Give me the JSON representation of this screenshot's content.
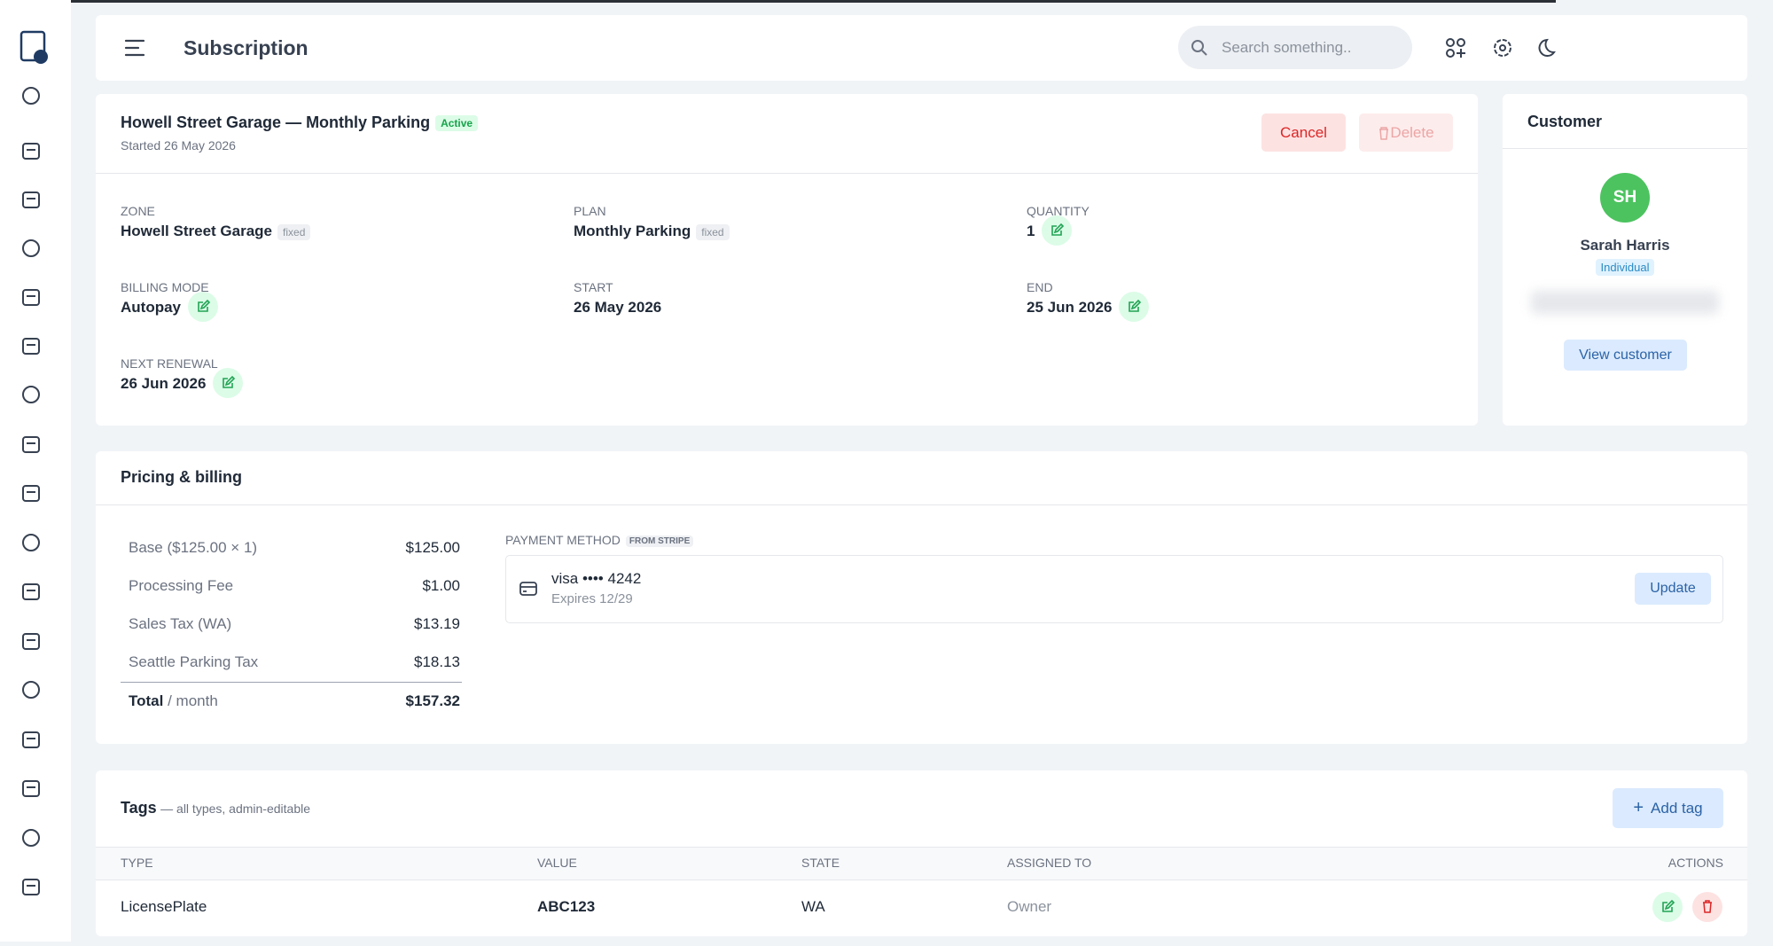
{
  "header": {
    "title": "Subscription",
    "search_placeholder": "Search something.."
  },
  "subscription": {
    "title": "Howell Street Garage — Monthly Parking",
    "status": "Active",
    "started": "Started 26 May 2026",
    "cancel_button": "Cancel",
    "delete_button": "Delete",
    "fields": [
      {
        "label": "ZONE",
        "value": "Howell Street Garage",
        "badge": "fixed"
      },
      {
        "label": "PLAN",
        "value": "Monthly Parking",
        "badge": "fixed"
      },
      {
        "label": "QUANTITY",
        "value": "1",
        "editable": true
      },
      {
        "label": "BILLING MODE",
        "value": "Autopay",
        "editable": true
      },
      {
        "label": "START",
        "value": "26 May 2026"
      },
      {
        "label": "END",
        "value": "25 Jun 2026",
        "editable": true
      },
      {
        "label": "NEXT RENEWAL",
        "value": "26 Jun 2026",
        "editable": true
      }
    ]
  },
  "customer": {
    "heading": "Customer",
    "initials": "SH",
    "name": "Sarah Harris",
    "type": "Individual",
    "button": "View customer"
  },
  "pricing": {
    "heading": "Pricing & billing",
    "lines": [
      {
        "label": "Base ($125.00 × 1)",
        "amount": "$125.00"
      },
      {
        "label": "Processing Fee",
        "amount": "$1.00"
      },
      {
        "label": "Sales Tax (WA)",
        "amount": "$13.19"
      },
      {
        "label": "Seattle Parking Tax",
        "amount": "$18.13"
      }
    ],
    "total_label": "Total",
    "total_suffix": "/ month",
    "total_amount": "$157.32",
    "payment_method_label": "PAYMENT METHOD",
    "source_badge": "FROM STRIPE",
    "card": "visa •••• 4242",
    "card_expiry": "Expires 12/29",
    "update_button": "Update"
  },
  "tags": {
    "heading": "Tags",
    "subtitle": "— all types, admin-editable",
    "add_button": "Add tag",
    "columns": [
      "TYPE",
      "VALUE",
      "STATE",
      "ASSIGNED TO",
      "ACTIONS"
    ],
    "rows": [
      [
        "LicensePlate",
        "ABC123",
        "WA",
        "Owner"
      ]
    ]
  }
}
